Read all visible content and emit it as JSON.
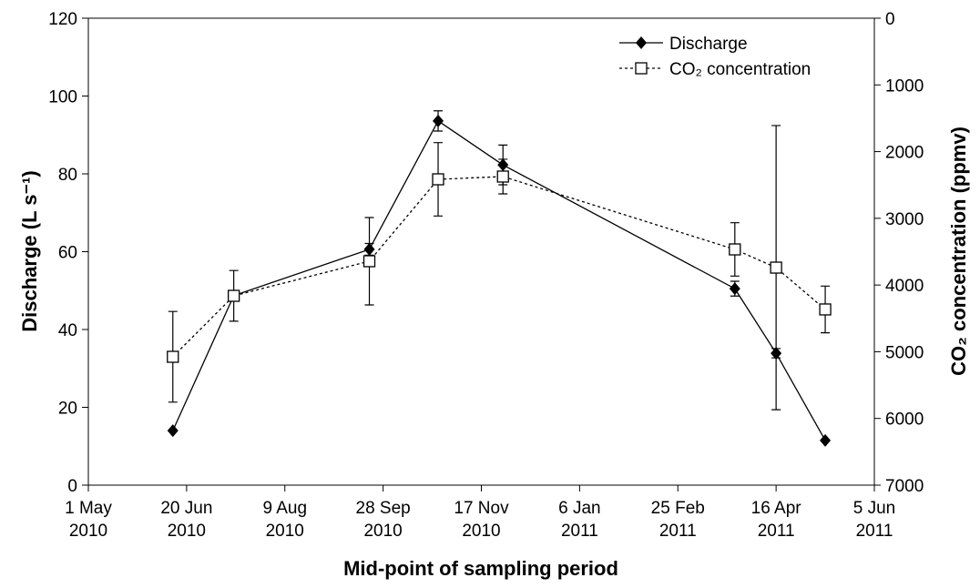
{
  "chart_data": {
    "type": "line",
    "x_label": "Mid-point of sampling period",
    "y_label": "Discharge (L s⁻¹)",
    "y2_label": "CO₂ concentration (ppmv)",
    "x": [
      "2010-06-13",
      "2010-07-14",
      "2010-09-21",
      "2010-10-26",
      "2010-11-28",
      "2011-03-26",
      "2011-04-16",
      "2011-05-11"
    ],
    "series": [
      {
        "name": "Discharge",
        "color": "#000000",
        "marker": "diamond",
        "dash": "solid",
        "values": [
          14.0,
          48.7,
          60.6,
          93.6,
          82.3,
          50.5,
          33.9,
          11.5
        ],
        "errors": [
          null,
          null,
          1.5,
          2.6,
          5.1,
          1.9,
          1.2,
          null
        ]
      },
      {
        "name": "CO₂ concentration",
        "color": "#000000",
        "marker": "square",
        "dash": "dotted",
        "axis": "y2",
        "values": [
          5076,
          4162,
          3643,
          2415,
          2374,
          3466,
          3739,
          4366
        ],
        "errors": [
          680,
          380,
          655,
          550,
          260,
          400,
          2130,
          350
        ]
      }
    ],
    "xlim": [
      "2010-05-01",
      "2011-06-05"
    ],
    "xticks": [
      {
        "value": "2010-05-01",
        "label": "1 May 2010"
      },
      {
        "value": "2010-06-20",
        "label": "20 Jun 2010"
      },
      {
        "value": "2010-08-09",
        "label": "9 Aug 2010"
      },
      {
        "value": "2010-09-28",
        "label": "28 Sep 2010"
      },
      {
        "value": "2010-11-17",
        "label": "17 Nov 2010"
      },
      {
        "value": "2011-01-06",
        "label": "6 Jan 2011"
      },
      {
        "value": "2011-02-25",
        "label": "25 Feb 2011"
      },
      {
        "value": "2011-04-16",
        "label": "16 Apr 2011"
      },
      {
        "value": "2011-06-05",
        "label": "5 Jun 2011"
      }
    ],
    "ylim": [
      0,
      120
    ],
    "yticks": [
      0,
      20,
      40,
      60,
      80,
      100,
      120
    ],
    "y2lim": [
      7000,
      0
    ],
    "y2ticks": [
      0,
      1000,
      2000,
      3000,
      4000,
      5000,
      6000,
      7000
    ],
    "legend": "top-right"
  }
}
